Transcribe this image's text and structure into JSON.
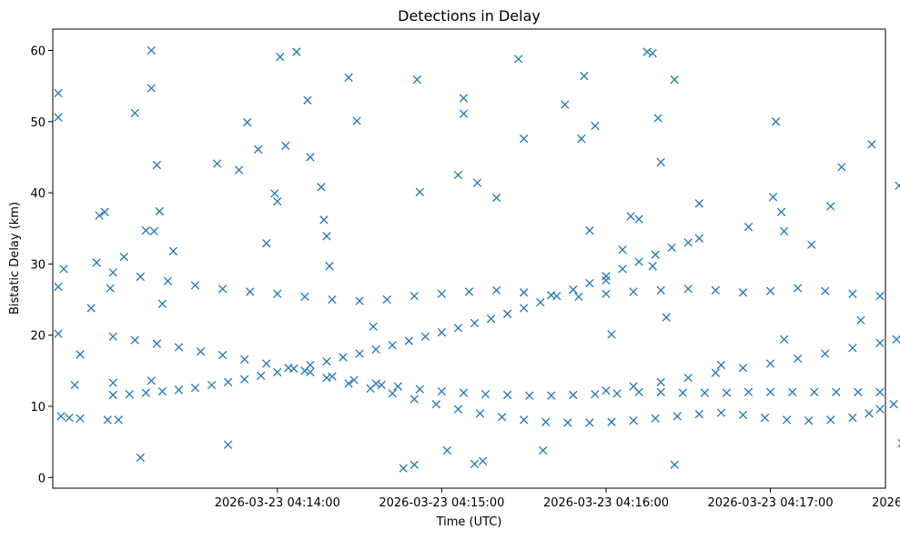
{
  "chart_data": {
    "type": "scatter",
    "title": "Detections in Delay",
    "xlabel": "Time (UTC)",
    "ylabel": "Bistatic Delay (km)",
    "marker": "x",
    "color": "#1f77b4",
    "xlim_seconds_since_04_13_00": [
      -22,
      282
    ],
    "ylim": [
      -1.5,
      63
    ],
    "x_tick_seconds": [
      60,
      120,
      180,
      240,
      300
    ],
    "x_tick_labels": [
      "2026-03-23 04:14:00",
      "2026-03-23 04:15:00",
      "2026-03-23 04:16:00",
      "2026-03-23 04:17:00",
      "2026-03-23 04:18:00"
    ],
    "y_ticks": [
      0,
      10,
      20,
      30,
      40,
      50,
      60
    ],
    "y_tick_labels": [
      "0",
      "10",
      "20",
      "30",
      "40",
      "50",
      "60"
    ],
    "x_units": "seconds since 2026-03-23 04:13:00 UTC",
    "series": [
      {
        "name": "track_rising",
        "description": "rises from ~11.5 km to ~33 km",
        "points": [
          [
            0,
            11.6
          ],
          [
            6,
            11.7
          ],
          [
            12,
            11.9
          ],
          [
            18,
            12.1
          ],
          [
            24,
            12.3
          ],
          [
            30,
            12.6
          ],
          [
            36,
            13.0
          ],
          [
            42,
            13.4
          ],
          [
            48,
            13.8
          ],
          [
            54,
            14.3
          ],
          [
            60,
            14.8
          ],
          [
            66,
            15.3
          ],
          [
            72,
            15.8
          ],
          [
            78,
            16.3
          ],
          [
            84,
            16.9
          ],
          [
            90,
            17.4
          ],
          [
            96,
            18.0
          ],
          [
            102,
            18.6
          ],
          [
            108,
            19.2
          ],
          [
            114,
            19.8
          ],
          [
            120,
            20.4
          ],
          [
            126,
            21.0
          ],
          [
            132,
            21.7
          ],
          [
            138,
            22.3
          ],
          [
            144,
            23.0
          ],
          [
            150,
            23.8
          ],
          [
            156,
            24.6
          ],
          [
            162,
            25.5
          ],
          [
            168,
            26.4
          ],
          [
            174,
            27.3
          ],
          [
            180,
            28.3
          ],
          [
            186,
            29.3
          ],
          [
            192,
            30.3
          ],
          [
            198,
            31.3
          ],
          [
            204,
            32.3
          ],
          [
            210,
            33.0
          ]
        ]
      },
      {
        "name": "track_falling",
        "description": "falls from ~20 km to ~11 km",
        "points": [
          [
            0,
            19.8
          ],
          [
            8,
            19.3
          ],
          [
            16,
            18.8
          ],
          [
            24,
            18.3
          ],
          [
            32,
            17.7
          ],
          [
            40,
            17.2
          ],
          [
            48,
            16.6
          ],
          [
            56,
            16.0
          ],
          [
            64,
            15.4
          ],
          [
            72,
            14.8
          ],
          [
            80,
            14.2
          ],
          [
            88,
            13.7
          ],
          [
            96,
            13.2
          ],
          [
            104,
            12.8
          ],
          [
            112,
            12.4
          ],
          [
            120,
            12.1
          ],
          [
            128,
            11.9
          ],
          [
            136,
            11.7
          ],
          [
            144,
            11.6
          ],
          [
            152,
            11.5
          ],
          [
            160,
            11.5
          ],
          [
            168,
            11.6
          ],
          [
            176,
            11.7
          ],
          [
            184,
            11.8
          ],
          [
            192,
            12.0
          ],
          [
            200,
            12.0
          ],
          [
            208,
            11.9
          ],
          [
            216,
            11.9
          ],
          [
            224,
            11.9
          ],
          [
            232,
            12.0
          ],
          [
            240,
            12.0
          ],
          [
            248,
            12.0
          ],
          [
            256,
            12.0
          ],
          [
            264,
            12.0
          ],
          [
            272,
            12.0
          ],
          [
            280,
            12.0
          ]
        ]
      },
      {
        "name": "track_dip",
        "description": "descends to ~7.8 km minimum near 04:16 then rises to ~11 km",
        "points": [
          [
            70,
            15.0
          ],
          [
            78,
            14.0
          ],
          [
            86,
            13.2
          ],
          [
            94,
            12.5
          ],
          [
            102,
            11.8
          ],
          [
            110,
            11.0
          ],
          [
            118,
            10.3
          ],
          [
            126,
            9.6
          ],
          [
            134,
            9.0
          ],
          [
            142,
            8.5
          ],
          [
            150,
            8.1
          ],
          [
            158,
            7.8
          ],
          [
            166,
            7.7
          ],
          [
            174,
            7.7
          ],
          [
            182,
            7.8
          ],
          [
            190,
            8.0
          ],
          [
            198,
            8.3
          ],
          [
            206,
            8.6
          ],
          [
            214,
            8.9
          ],
          [
            222,
            9.1
          ],
          [
            230,
            8.8
          ],
          [
            238,
            8.4
          ],
          [
            246,
            8.1
          ],
          [
            254,
            8.0
          ],
          [
            262,
            8.1
          ],
          [
            270,
            8.4
          ],
          [
            276,
            9.0
          ],
          [
            280,
            9.6
          ],
          [
            285,
            10.3
          ],
          [
            290,
            10.8
          ]
        ]
      },
      {
        "name": "track_flat_26",
        "description": "near-constant delay around 25-27 km",
        "points": [
          [
            0,
            28.8
          ],
          [
            10,
            28.2
          ],
          [
            20,
            27.6
          ],
          [
            30,
            27.0
          ],
          [
            40,
            26.5
          ],
          [
            50,
            26.1
          ],
          [
            60,
            25.8
          ],
          [
            70,
            25.4
          ],
          [
            80,
            25.0
          ],
          [
            90,
            24.8
          ],
          [
            100,
            25.0
          ],
          [
            110,
            25.5
          ],
          [
            120,
            25.8
          ],
          [
            130,
            26.1
          ],
          [
            140,
            26.3
          ],
          [
            150,
            26.0
          ],
          [
            160,
            25.6
          ],
          [
            170,
            25.4
          ],
          [
            180,
            25.8
          ],
          [
            190,
            26.1
          ],
          [
            200,
            26.3
          ],
          [
            210,
            26.5
          ],
          [
            220,
            26.3
          ],
          [
            230,
            26.0
          ],
          [
            240,
            26.2
          ],
          [
            250,
            26.6
          ],
          [
            260,
            26.2
          ],
          [
            270,
            25.8
          ],
          [
            280,
            25.5
          ],
          [
            290,
            25.3
          ],
          [
            300,
            25.8
          ],
          [
            310,
            25.8
          ],
          [
            320,
            25.6
          ]
        ]
      },
      {
        "name": "track_rising_late",
        "description": "rises from ~12 km to ~20 km in the latter half",
        "points": [
          [
            180,
            12.2
          ],
          [
            190,
            12.8
          ],
          [
            200,
            13.4
          ],
          [
            210,
            14.0
          ],
          [
            220,
            14.7
          ],
          [
            230,
            15.4
          ],
          [
            240,
            16.0
          ],
          [
            250,
            16.7
          ],
          [
            260,
            17.4
          ],
          [
            270,
            18.2
          ],
          [
            280,
            18.9
          ],
          [
            286,
            19.4
          ]
        ]
      },
      {
        "name": "outliers",
        "description": "scattered detections",
        "points": [
          [
            -20,
            54.0
          ],
          [
            -20,
            50.6
          ],
          [
            -18,
            29.3
          ],
          [
            -20,
            26.8
          ],
          [
            -20,
            20.2
          ],
          [
            -19,
            8.6
          ],
          [
            -16,
            8.4
          ],
          [
            -12,
            8.3
          ],
          [
            -14,
            13.0
          ],
          [
            -12,
            17.3
          ],
          [
            -8,
            23.8
          ],
          [
            -6,
            30.2
          ],
          [
            -5,
            36.8
          ],
          [
            -3,
            37.3
          ],
          [
            -1,
            26.6
          ],
          [
            4,
            31.0
          ],
          [
            -2,
            8.1
          ],
          [
            2,
            8.1
          ],
          [
            0,
            13.3
          ],
          [
            8,
            51.2
          ],
          [
            10,
            2.8
          ],
          [
            14,
            60.0
          ],
          [
            14,
            54.7
          ],
          [
            16,
            43.9
          ],
          [
            17,
            37.4
          ],
          [
            18,
            24.4
          ],
          [
            22,
            31.8
          ],
          [
            12,
            34.7
          ],
          [
            15,
            34.6
          ],
          [
            14,
            13.6
          ],
          [
            38,
            44.1
          ],
          [
            46,
            43.2
          ],
          [
            42,
            4.6
          ],
          [
            49,
            49.9
          ],
          [
            53,
            46.1
          ],
          [
            56,
            32.9
          ],
          [
            59,
            39.9
          ],
          [
            60,
            38.8
          ],
          [
            61,
            59.1
          ],
          [
            63,
            46.6
          ],
          [
            67,
            59.8
          ],
          [
            71,
            53.0
          ],
          [
            72,
            45.0
          ],
          [
            76,
            40.8
          ],
          [
            77,
            36.2
          ],
          [
            79,
            29.7
          ],
          [
            78,
            33.9
          ],
          [
            86,
            56.2
          ],
          [
            89,
            50.1
          ],
          [
            95,
            21.2
          ],
          [
            98,
            13.0
          ],
          [
            106,
            1.3
          ],
          [
            110,
            1.8
          ],
          [
            111,
            55.9
          ],
          [
            112,
            40.1
          ],
          [
            122,
            3.8
          ],
          [
            128,
            53.3
          ],
          [
            128,
            51.1
          ],
          [
            126,
            42.5
          ],
          [
            132,
            1.9
          ],
          [
            135,
            2.3
          ],
          [
            133,
            41.4
          ],
          [
            140,
            39.3
          ],
          [
            148,
            58.8
          ],
          [
            150,
            47.6
          ],
          [
            157,
            3.8
          ],
          [
            165,
            52.4
          ],
          [
            171,
            47.6
          ],
          [
            172,
            56.4
          ],
          [
            176,
            49.4
          ],
          [
            174,
            34.7
          ],
          [
            180,
            27.7
          ],
          [
            182,
            20.1
          ],
          [
            186,
            32.0
          ],
          [
            189,
            36.7
          ],
          [
            192,
            36.3
          ],
          [
            195,
            59.8
          ],
          [
            197,
            59.6
          ],
          [
            199,
            50.5
          ],
          [
            200,
            44.3
          ],
          [
            197,
            29.7
          ],
          [
            202,
            22.5
          ],
          [
            205,
            1.8
          ],
          [
            205,
            55.9
          ],
          [
            214,
            33.6
          ],
          [
            214,
            38.5
          ],
          [
            222,
            15.8
          ],
          [
            232,
            35.2
          ],
          [
            241,
            39.4
          ],
          [
            245,
            34.6
          ],
          [
            244,
            37.3
          ],
          [
            245,
            19.4
          ],
          [
            255,
            32.7
          ],
          [
            242,
            50.0
          ],
          [
            262,
            38.1
          ],
          [
            266,
            43.6
          ],
          [
            277,
            46.8
          ],
          [
            273,
            22.1
          ],
          [
            287,
            41.0
          ],
          [
            291,
            47.8
          ],
          [
            293,
            46.2
          ],
          [
            294,
            34.7
          ],
          [
            297,
            28.5
          ],
          [
            288,
            4.8
          ],
          [
            295,
            6.5
          ],
          [
            303,
            39.5
          ],
          [
            304,
            32.4
          ],
          [
            304,
            59.5
          ],
          [
            310,
            23.0
          ],
          [
            316,
            17.6
          ],
          [
            318,
            20.3
          ],
          [
            319,
            22.1
          ],
          [
            327,
            34.7
          ],
          [
            330,
            41.3
          ],
          [
            330,
            46.7
          ],
          [
            330,
            31.0
          ],
          [
            333,
            59.0
          ],
          [
            336,
            20.2
          ],
          [
            339,
            17.5
          ],
          [
            340,
            33.3
          ],
          [
            343,
            33.5
          ],
          [
            346,
            34.8
          ],
          [
            345,
            25.4
          ],
          [
            346,
            11.7
          ],
          [
            350,
            9.3
          ]
        ]
      }
    ]
  }
}
